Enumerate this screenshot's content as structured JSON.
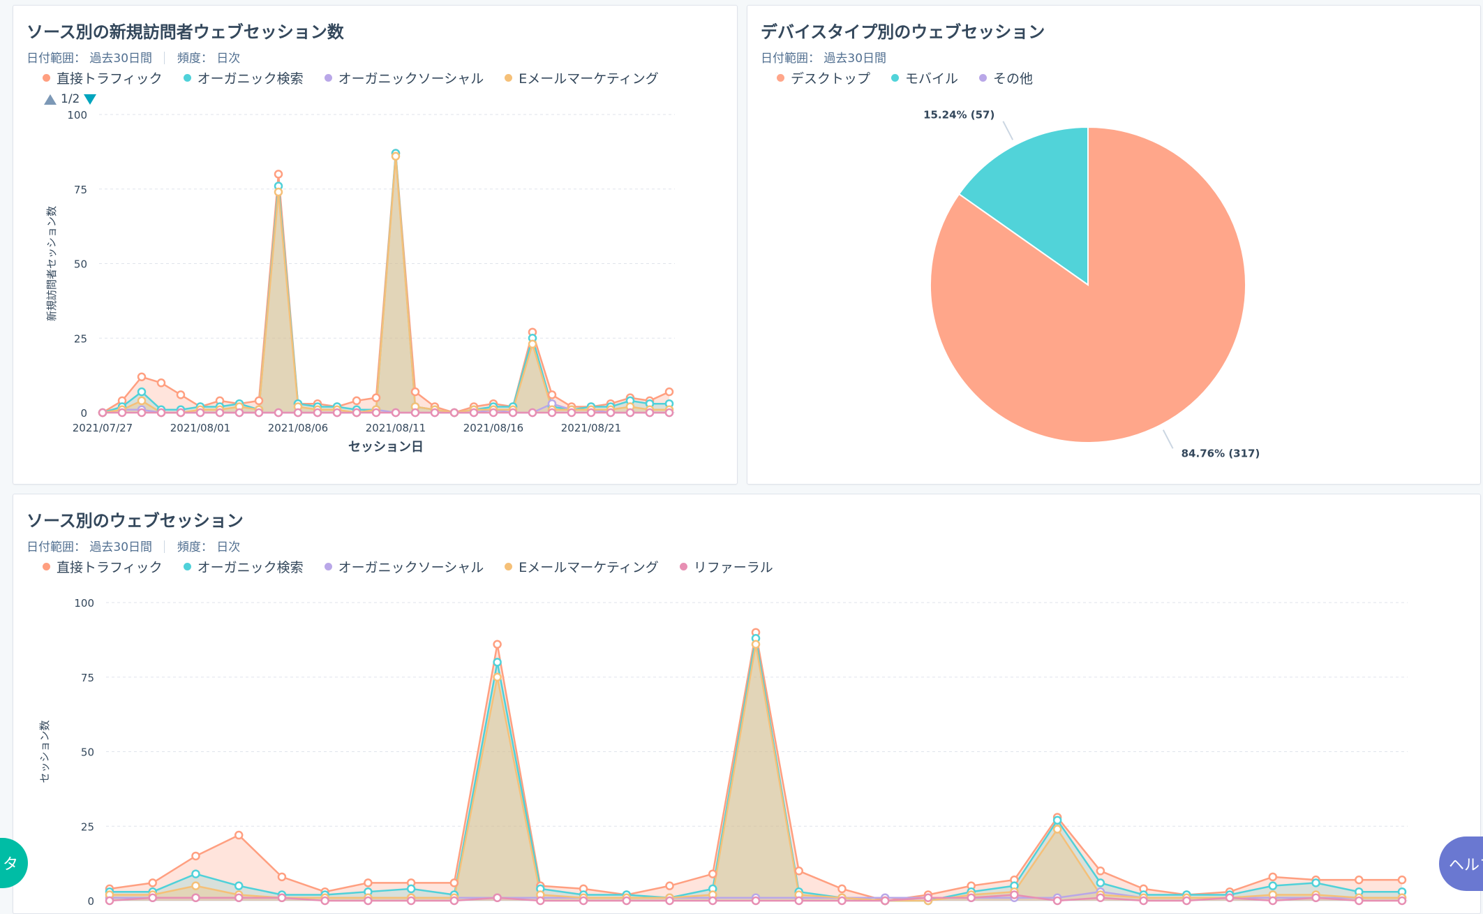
{
  "colors": {
    "direct": "#ff9f80",
    "organic": "#4fd1d9",
    "social": "#b9a7e8",
    "email": "#f5c078",
    "referral": "#e78fb3"
  },
  "card1": {
    "title": "ソース別の新規訪問者ウェブセッション数",
    "range_label": "日付範囲：",
    "range_value": "過去30日間",
    "freq_label": "頻度：",
    "freq_value": "日次",
    "pager": "1/2",
    "legend": [
      {
        "key": "direct",
        "label": "直接トラフィック"
      },
      {
        "key": "organic",
        "label": "オーガニック検索"
      },
      {
        "key": "social",
        "label": "オーガニックソーシャル"
      },
      {
        "key": "email",
        "label": "Eメールマーケティング"
      }
    ]
  },
  "card2": {
    "title": "デバイスタイプ別のウェブセッション",
    "range_label": "日付範囲：",
    "range_value": "過去30日間",
    "legend": [
      {
        "key": "desktop",
        "label": "デスクトップ",
        "color": "#ffa68a"
      },
      {
        "key": "mobile",
        "label": "モバイル",
        "color": "#51d3d9"
      },
      {
        "key": "other",
        "label": "その他",
        "color": "#b9a7e8"
      }
    ]
  },
  "card3": {
    "title": "ソース別のウェブセッション",
    "range_label": "日付範囲：",
    "range_value": "過去30日間",
    "freq_label": "頻度：",
    "freq_value": "日次",
    "legend": [
      {
        "key": "direct",
        "label": "直接トラフィック"
      },
      {
        "key": "organic",
        "label": "オーガニック検索"
      },
      {
        "key": "social",
        "label": "オーガニックソーシャル"
      },
      {
        "key": "email",
        "label": "Eメールマーケティング"
      },
      {
        "key": "referral",
        "label": "リファーラル"
      }
    ]
  },
  "fab": {
    "left_label": "タ",
    "right_label": "ヘルプ"
  },
  "chart_data": [
    {
      "id": "line1",
      "type": "area",
      "title": "ソース別の新規訪問者ウェブセッション数",
      "xlabel": "セッション日",
      "ylabel": "新規訪問者セッション数",
      "ylim": [
        0,
        100
      ],
      "yticks": [
        0,
        25,
        50,
        75,
        100
      ],
      "x": [
        "2021/07/27",
        "2021/07/28",
        "2021/07/29",
        "2021/07/30",
        "2021/07/31",
        "2021/08/01",
        "2021/08/02",
        "2021/08/03",
        "2021/08/04",
        "2021/08/05",
        "2021/08/06",
        "2021/08/07",
        "2021/08/08",
        "2021/08/09",
        "2021/08/10",
        "2021/08/11",
        "2021/08/12",
        "2021/08/13",
        "2021/08/14",
        "2021/08/15",
        "2021/08/16",
        "2021/08/17",
        "2021/08/18",
        "2021/08/19",
        "2021/08/20",
        "2021/08/21",
        "2021/08/22",
        "2021/08/23",
        "2021/08/24",
        "2021/08/25"
      ],
      "xtick_labels": [
        "2021/07/27",
        "2021/08/01",
        "2021/08/06",
        "2021/08/11",
        "2021/08/16",
        "2021/08/21"
      ],
      "grid": true,
      "series": [
        {
          "name": "直接トラフィック",
          "key": "direct",
          "values": [
            0,
            4,
            12,
            10,
            6,
            2,
            4,
            3,
            4,
            80,
            3,
            3,
            2,
            4,
            5,
            87,
            7,
            2,
            0,
            2,
            3,
            2,
            27,
            6,
            2,
            2,
            3,
            5,
            4,
            7
          ]
        },
        {
          "name": "オーガニック検索",
          "key": "organic",
          "values": [
            0,
            2,
            7,
            1,
            1,
            2,
            2,
            3,
            1,
            76,
            3,
            2,
            2,
            1,
            1,
            87,
            2,
            1,
            0,
            1,
            2,
            2,
            25,
            2,
            1,
            2,
            2,
            4,
            3,
            3
          ]
        },
        {
          "name": "オーガニックソーシャル",
          "key": "social",
          "values": [
            0,
            1,
            1,
            0,
            0,
            0,
            0,
            0,
            0,
            0,
            0,
            0,
            0,
            0,
            1,
            0,
            0,
            0,
            0,
            0,
            1,
            0,
            0,
            3,
            1,
            1,
            0,
            0,
            0,
            0
          ]
        },
        {
          "name": "Eメールマーケティング",
          "key": "email",
          "values": [
            0,
            1,
            4,
            0,
            0,
            1,
            1,
            2,
            1,
            74,
            2,
            1,
            1,
            0,
            1,
            86,
            2,
            1,
            0,
            1,
            1,
            1,
            23,
            1,
            1,
            1,
            1,
            2,
            1,
            1
          ]
        },
        {
          "key": "referral",
          "values": [
            0,
            0,
            0,
            0,
            0,
            0,
            0,
            0,
            0,
            0,
            0,
            0,
            0,
            0,
            0,
            0,
            0,
            0,
            0,
            0,
            0,
            0,
            0,
            0,
            0,
            0,
            0,
            0,
            0,
            0
          ]
        }
      ]
    },
    {
      "id": "pie1",
      "type": "pie",
      "title": "デバイスタイプ別のウェブセッション",
      "slices": [
        {
          "name": "デスクトップ",
          "key": "desktop",
          "value": 317,
          "percent": 84.76,
          "label": "84.76% (317)"
        },
        {
          "name": "モバイル",
          "key": "mobile",
          "value": 57,
          "percent": 15.24,
          "label": "15.24% (57)"
        }
      ]
    },
    {
      "id": "line2",
      "type": "area",
      "title": "ソース別のウェブセッション",
      "ylabel": "セッション数",
      "ylim": [
        0,
        100
      ],
      "yticks": [
        0,
        25,
        50,
        75,
        100
      ],
      "x": [
        "2021/07/27",
        "2021/07/28",
        "2021/07/29",
        "2021/07/30",
        "2021/07/31",
        "2021/08/01",
        "2021/08/02",
        "2021/08/03",
        "2021/08/04",
        "2021/08/05",
        "2021/08/06",
        "2021/08/07",
        "2021/08/08",
        "2021/08/09",
        "2021/08/10",
        "2021/08/11",
        "2021/08/12",
        "2021/08/13",
        "2021/08/14",
        "2021/08/15",
        "2021/08/16",
        "2021/08/17",
        "2021/08/18",
        "2021/08/19",
        "2021/08/20",
        "2021/08/21",
        "2021/08/22",
        "2021/08/23",
        "2021/08/24",
        "2021/08/25",
        "2021/08/26"
      ],
      "grid": true,
      "series": [
        {
          "name": "直接トラフィック",
          "key": "direct",
          "values": [
            4,
            6,
            15,
            22,
            8,
            3,
            6,
            6,
            6,
            86,
            5,
            4,
            2,
            5,
            9,
            90,
            10,
            4,
            0,
            2,
            5,
            7,
            28,
            10,
            4,
            2,
            3,
            8,
            7,
            7,
            7
          ]
        },
        {
          "name": "オーガニック検索",
          "key": "organic",
          "values": [
            3,
            3,
            9,
            5,
            2,
            2,
            3,
            4,
            2,
            80,
            4,
            2,
            2,
            1,
            4,
            88,
            3,
            1,
            0,
            0,
            3,
            5,
            27,
            6,
            2,
            2,
            2,
            5,
            6,
            3,
            3
          ]
        },
        {
          "name": "オーガニックソーシャル",
          "key": "social",
          "values": [
            1,
            1,
            1,
            1,
            1,
            1,
            1,
            1,
            1,
            1,
            1,
            1,
            1,
            1,
            1,
            1,
            1,
            1,
            1,
            1,
            1,
            1,
            1,
            3,
            1,
            1,
            1,
            1,
            1,
            1,
            1
          ]
        },
        {
          "name": "Eメールマーケティング",
          "key": "email",
          "values": [
            2,
            2,
            5,
            2,
            1,
            1,
            1,
            1,
            1,
            75,
            2,
            1,
            1,
            1,
            2,
            86,
            2,
            1,
            0,
            0,
            2,
            3,
            24,
            2,
            1,
            1,
            1,
            2,
            2,
            1,
            1
          ]
        },
        {
          "name": "リファーラル",
          "key": "referral",
          "values": [
            0,
            1,
            1,
            1,
            1,
            0,
            0,
            0,
            0,
            1,
            0,
            0,
            0,
            0,
            0,
            0,
            0,
            0,
            0,
            1,
            1,
            2,
            0,
            1,
            0,
            0,
            1,
            0,
            1,
            0,
            0
          ]
        }
      ]
    }
  ]
}
